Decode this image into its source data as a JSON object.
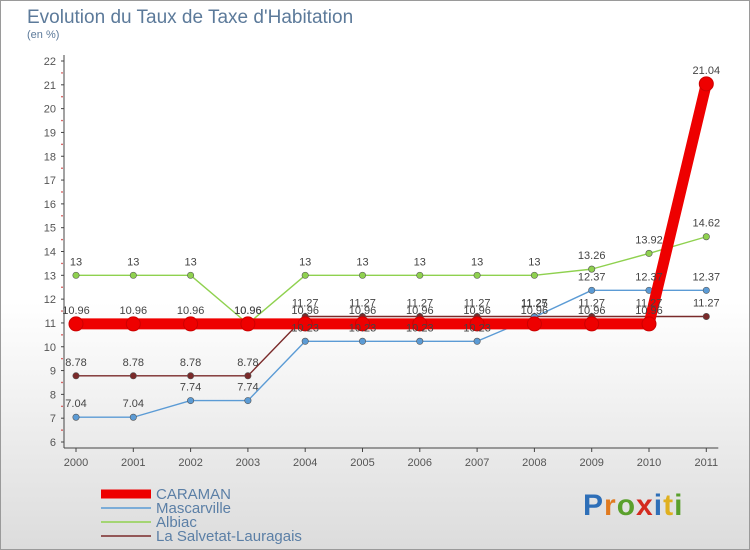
{
  "title": "Evolution du Taux de Taxe d'Habitation",
  "unit_label": "(en %)",
  "brand": {
    "letters": [
      {
        "ch": "P",
        "color": "#2e6fb8"
      },
      {
        "ch": "r",
        "color": "#e07a1f"
      },
      {
        "ch": "o",
        "color": "#5aa02c"
      },
      {
        "ch": "x",
        "color": "#d42a1f"
      },
      {
        "ch": "i",
        "color": "#2e6fb8"
      },
      {
        "ch": "t",
        "color": "#e0b01f"
      },
      {
        "ch": "i",
        "color": "#5aa02c"
      }
    ]
  },
  "chart_data": {
    "type": "line",
    "title": "Evolution du Taux de Taxe d'Habitation",
    "ylabel": "(en %)",
    "x": [
      "2000",
      "2001",
      "2002",
      "2003",
      "2004",
      "2005",
      "2006",
      "2007",
      "2008",
      "2009",
      "2010",
      "2011"
    ],
    "ylim": [
      6,
      22
    ],
    "yticks": [
      6,
      7,
      8,
      9,
      10,
      11,
      12,
      13,
      14,
      15,
      16,
      17,
      18,
      19,
      20,
      21,
      22
    ],
    "grid": false,
    "legend_position": "bottom-left",
    "series": [
      {
        "name": "CARAMAN",
        "color": "#ee0000",
        "values": [
          10.96,
          10.96,
          10.96,
          10.96,
          10.96,
          10.96,
          10.96,
          10.96,
          10.96,
          10.96,
          10.96,
          21.04
        ],
        "labels": [
          "10.96",
          "10.96",
          "10.96",
          "10.96",
          "10.96",
          "10.96",
          "10.96",
          "10.96",
          "10.96",
          "10.96",
          "10.96",
          "21.04"
        ]
      },
      {
        "name": "Mascarville",
        "color": "#5b9bd5",
        "values": [
          7.04,
          7.04,
          7.74,
          7.74,
          10.23,
          10.23,
          10.23,
          10.23,
          11.25,
          12.37,
          12.37,
          12.37
        ],
        "labels": [
          "7.04",
          "7.04",
          "7.74",
          "7.74",
          "10.23",
          "10.23",
          "10.23",
          "10.23",
          "11.25",
          "12.37",
          "12.37",
          "12.37"
        ]
      },
      {
        "name": "Albiac",
        "color": "#8fd14f",
        "values": [
          13,
          13,
          13,
          10.96,
          13,
          13,
          13,
          13,
          13,
          13.26,
          13.92,
          14.62
        ],
        "labels": [
          "13",
          "13",
          "13",
          "10.96",
          "13",
          "13",
          "13",
          "13",
          "13",
          "13.26",
          "13.92",
          "14.62"
        ]
      },
      {
        "name": "La Salvetat-Lauragais",
        "color": "#7a2a2a",
        "values": [
          8.78,
          8.78,
          8.78,
          8.78,
          11.27,
          11.27,
          11.27,
          11.27,
          11.27,
          11.27,
          11.27,
          11.27
        ],
        "labels": [
          "8.78",
          "8.78",
          "8.78",
          "8.78",
          "11.27",
          "11.27",
          "11.27",
          "11.27",
          "11.27",
          "11.27",
          "11.27",
          "11.27"
        ]
      }
    ]
  }
}
